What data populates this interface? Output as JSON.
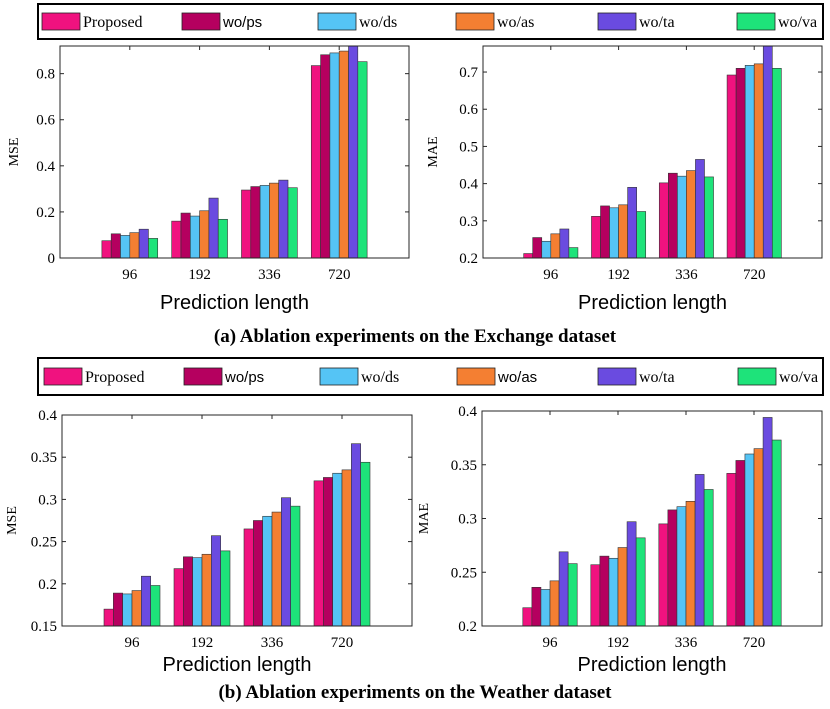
{
  "series_names": [
    "Proposed",
    "wo/ps",
    "wo/ds",
    "wo/as",
    "wo/ta",
    "wo/va"
  ],
  "colors": {
    "Proposed": "#f0127f",
    "wo/ps": "#b5005f",
    "wo/ds": "#55c4f5",
    "wo/as": "#f47f32",
    "wo/ta": "#6a4be0",
    "wo/va": "#1ee37a",
    "axes": "#262626"
  },
  "captions": {
    "a": "(a) Ablation experiments on the Exchange dataset",
    "b": "(b) Ablation experiments on the Weather dataset"
  },
  "chart_data": [
    {
      "id": "exchange-mse",
      "type": "bar",
      "title": "",
      "xlabel": "Prediction length",
      "ylabel": "MSE",
      "categories": [
        "96",
        "192",
        "336",
        "720"
      ],
      "ylim": [
        0,
        0.92
      ],
      "yticks": [
        0,
        0.2,
        0.4,
        0.6,
        0.8
      ],
      "ytick_labels": [
        "0",
        "0.2",
        "0.4",
        "0.6",
        "0.8"
      ],
      "series": [
        {
          "name": "Proposed",
          "values": [
            0.075,
            0.16,
            0.295,
            0.835
          ]
        },
        {
          "name": "wo/ps",
          "values": [
            0.105,
            0.195,
            0.31,
            0.882
          ]
        },
        {
          "name": "wo/ds",
          "values": [
            0.098,
            0.182,
            0.315,
            0.89
          ]
        },
        {
          "name": "wo/as",
          "values": [
            0.11,
            0.205,
            0.325,
            0.898
          ]
        },
        {
          "name": "wo/ta",
          "values": [
            0.125,
            0.26,
            0.338,
            0.93
          ]
        },
        {
          "name": "wo/va",
          "values": [
            0.085,
            0.168,
            0.305,
            0.852
          ]
        }
      ]
    },
    {
      "id": "exchange-mae",
      "type": "bar",
      "title": "",
      "xlabel": "Prediction length",
      "ylabel": "MAE",
      "categories": [
        "96",
        "192",
        "336",
        "720"
      ],
      "ylim": [
        0.2,
        0.77
      ],
      "yticks": [
        0.2,
        0.3,
        0.4,
        0.5,
        0.6,
        0.7
      ],
      "ytick_labels": [
        "0.2",
        "0.3",
        "0.4",
        "0.5",
        "0.6",
        "0.7"
      ],
      "series": [
        {
          "name": "Proposed",
          "values": [
            0.212,
            0.312,
            0.402,
            0.692
          ]
        },
        {
          "name": "wo/ps",
          "values": [
            0.255,
            0.34,
            0.428,
            0.71
          ]
        },
        {
          "name": "wo/ds",
          "values": [
            0.245,
            0.335,
            0.42,
            0.718
          ]
        },
        {
          "name": "wo/as",
          "values": [
            0.265,
            0.343,
            0.435,
            0.722
          ]
        },
        {
          "name": "wo/ta",
          "values": [
            0.278,
            0.39,
            0.465,
            0.775
          ]
        },
        {
          "name": "wo/va",
          "values": [
            0.228,
            0.325,
            0.418,
            0.71
          ]
        }
      ]
    },
    {
      "id": "weather-mse",
      "type": "bar",
      "title": "",
      "xlabel": "Prediction length",
      "ylabel": "MSE",
      "categories": [
        "96",
        "192",
        "336",
        "720"
      ],
      "ylim": [
        0.15,
        0.4
      ],
      "yticks": [
        0.15,
        0.2,
        0.25,
        0.3,
        0.35,
        0.4
      ],
      "ytick_labels": [
        "0.15",
        "0.2",
        "0.25",
        "0.3",
        "0.35",
        "0.4"
      ],
      "series": [
        {
          "name": "Proposed",
          "values": [
            0.17,
            0.218,
            0.265,
            0.322
          ]
        },
        {
          "name": "wo/ps",
          "values": [
            0.189,
            0.232,
            0.275,
            0.326
          ]
        },
        {
          "name": "wo/ds",
          "values": [
            0.188,
            0.231,
            0.28,
            0.331
          ]
        },
        {
          "name": "wo/as",
          "values": [
            0.192,
            0.235,
            0.285,
            0.335
          ]
        },
        {
          "name": "wo/ta",
          "values": [
            0.209,
            0.257,
            0.302,
            0.366
          ]
        },
        {
          "name": "wo/va",
          "values": [
            0.198,
            0.239,
            0.292,
            0.344
          ]
        }
      ]
    },
    {
      "id": "weather-mae",
      "type": "bar",
      "title": "",
      "xlabel": "Prediction length",
      "ylabel": "MAE",
      "categories": [
        "96",
        "192",
        "336",
        "720"
      ],
      "ylim": [
        0.2,
        0.4
      ],
      "yticks": [
        0.2,
        0.25,
        0.3,
        0.35,
        0.4
      ],
      "ytick_labels": [
        "0.2",
        "0.25",
        "0.3",
        "0.35",
        "0.4"
      ],
      "series": [
        {
          "name": "Proposed",
          "values": [
            0.217,
            0.257,
            0.295,
            0.342
          ]
        },
        {
          "name": "wo/ps",
          "values": [
            0.236,
            0.265,
            0.308,
            0.354
          ]
        },
        {
          "name": "wo/ds",
          "values": [
            0.234,
            0.263,
            0.311,
            0.36
          ]
        },
        {
          "name": "wo/as",
          "values": [
            0.242,
            0.273,
            0.316,
            0.365
          ]
        },
        {
          "name": "wo/ta",
          "values": [
            0.269,
            0.297,
            0.341,
            0.394
          ]
        },
        {
          "name": "wo/va",
          "values": [
            0.258,
            0.282,
            0.327,
            0.373
          ]
        }
      ]
    }
  ]
}
